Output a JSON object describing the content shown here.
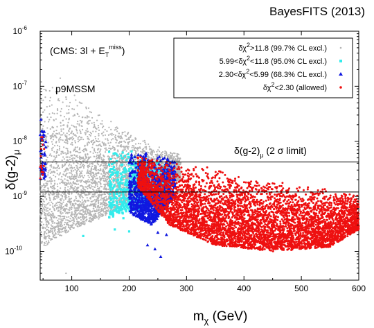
{
  "chart_data": {
    "type": "scatter",
    "title": "BayesFITS (2013)",
    "xlabel": "m_χ (GeV)",
    "ylabel": "δ(g-2)_μ",
    "xlim": [
      45,
      600
    ],
    "ylim": [
      3e-11,
      1e-06
    ],
    "yscale": "log",
    "grid": false,
    "legend_position": "top-right",
    "x_ticks": [
      100,
      200,
      300,
      400,
      500,
      600
    ],
    "y_ticks": [
      {
        "base": "10",
        "exp": "-10",
        "value": 1e-10
      },
      {
        "base": "10",
        "exp": "-9",
        "value": 1e-09
      },
      {
        "base": "10",
        "exp": "-8",
        "value": 1e-08
      },
      {
        "base": "10",
        "exp": "-7",
        "value": 1e-07
      },
      {
        "base": "10",
        "exp": "-6",
        "value": 1e-06
      }
    ],
    "annotations": {
      "analysis_label": "(CMS: 3l + E",
      "analysis_sub": "T",
      "analysis_sup": "miss",
      "analysis_close": ")",
      "model_label": "p9MSSM",
      "limit_label": "δ(g-2)",
      "limit_sub": "μ",
      "limit_tail": " (2 σ limit)"
    },
    "limit_lines": [
      4.2e-09,
      1.2e-09
    ],
    "series": [
      {
        "name": "δχ²>11.8 (99.7% CL excl.)",
        "legend": {
          "pre": "δχ",
          "sup": "2",
          "post": ">11.8 (99.7% CL excl.)"
        },
        "color": "#b4b4b4",
        "marker": "dot",
        "regions": [
          {
            "x": [
              45,
              290
            ],
            "y_upper": [
              [
                45,
                1.2e-07
              ],
              [
                100,
                9e-08
              ],
              [
                150,
                3.5e-08
              ],
              [
                200,
                1.5e-08
              ],
              [
                250,
                8e-09
              ],
              [
                290,
                6e-09
              ]
            ],
            "y_lower": [
              [
                45,
                1.1e-10
              ],
              [
                100,
                2.5e-10
              ],
              [
                150,
                4e-10
              ],
              [
                200,
                8e-10
              ],
              [
                250,
                1.5e-09
              ],
              [
                290,
                2e-09
              ]
            ],
            "density": 4200
          }
        ],
        "points": [
          [
            90,
            4e-11
          ],
          [
            47,
            1.2e-07
          ],
          [
            80,
            1.4e-07
          ]
        ]
      },
      {
        "name": "5.99<δχ²<11.8 (95.0% CL excl.)",
        "legend": {
          "pre": "5.99<δχ",
          "sup": "2",
          "post": "<11.8 (95.0% CL excl.)"
        },
        "color": "#33ecec",
        "marker": "square",
        "regions": [
          {
            "x": [
              165,
              270
            ],
            "y_upper": [
              [
                165,
                1e-08
              ],
              [
                220,
                6e-09
              ],
              [
                270,
                4e-09
              ]
            ],
            "y_lower": [
              [
                165,
                4e-10
              ],
              [
                220,
                6e-10
              ],
              [
                270,
                1.3e-09
              ]
            ],
            "density": 650
          }
        ],
        "points": [
          [
            175,
            2.5e-10
          ],
          [
            200,
            2.3e-10
          ],
          [
            120,
            1.9e-10
          ],
          [
            190,
            4e-10
          ]
        ]
      },
      {
        "name": "2.30<δχ²<5.99 (68.3% CL excl.)",
        "legend": {
          "pre": "2.30<δχ",
          "sup": "2",
          "post": "<5.99 (68.3% CL excl.)"
        },
        "color": "#1018e0",
        "marker": "triangle",
        "regions": [
          {
            "x": [
              200,
              280
            ],
            "y_upper": [
              [
                200,
                8e-09
              ],
              [
                240,
                6e-09
              ],
              [
                280,
                4.5e-09
              ]
            ],
            "y_lower": [
              [
                200,
                5e-10
              ],
              [
                240,
                3e-10
              ],
              [
                280,
                1e-09
              ]
            ],
            "density": 900
          },
          {
            "x": [
              45,
              55
            ],
            "y_upper": [
              [
                45,
                4e-08
              ],
              [
                55,
                1.5e-08
              ]
            ],
            "y_lower": [
              [
                45,
                2e-09
              ],
              [
                55,
                2e-09
              ]
            ],
            "density": 45
          }
        ],
        "points": [
          [
            255,
            8e-11
          ],
          [
            232,
            1.3e-10
          ],
          [
            265,
            2e-10
          ],
          [
            250,
            2.2e-10
          ],
          [
            245,
            1.1e-10
          ]
        ]
      },
      {
        "name": "δχ²<2.30 (allowed)",
        "legend": {
          "pre": "δχ",
          "sup": "2",
          "post": "<2.30 (allowed)"
        },
        "color": "#ee1010",
        "marker": "dot",
        "regions": [
          {
            "x": [
              215,
              600
            ],
            "y_upper": [
              [
                215,
                6e-09
              ],
              [
                300,
                4e-09
              ],
              [
                400,
                2.5e-09
              ],
              [
                500,
                1.6e-09
              ],
              [
                600,
                1.1e-09
              ]
            ],
            "y_lower": [
              [
                215,
                1.5e-09
              ],
              [
                270,
                3e-10
              ],
              [
                350,
                1.3e-10
              ],
              [
                450,
                1e-10
              ],
              [
                550,
                1.2e-10
              ],
              [
                600,
                2.5e-10
              ]
            ],
            "density": 5200
          },
          {
            "x": [
              45,
              52
            ],
            "y_upper": [
              [
                45,
                4.5e-08
              ],
              [
                52,
                1.2e-08
              ]
            ],
            "y_lower": [
              [
                45,
                2e-09
              ],
              [
                52,
                2.5e-09
              ]
            ],
            "density": 18
          }
        ],
        "points": []
      }
    ]
  }
}
